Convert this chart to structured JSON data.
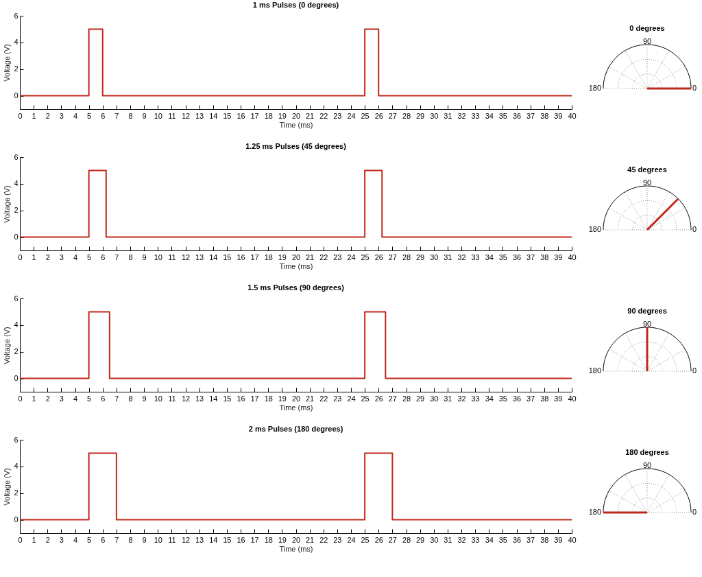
{
  "chart_data": [
    {
      "type": "line",
      "title": "1 ms Pulses (0 degrees)",
      "xlabel": "Time (ms)",
      "ylabel": "Voltage (V)",
      "x": [
        0,
        5,
        5,
        6,
        6,
        25,
        25,
        26,
        26,
        40
      ],
      "values": [
        0,
        0,
        5,
        5,
        0,
        0,
        5,
        5,
        0,
        0
      ],
      "color": "#c0281c",
      "xlim": [
        0,
        40
      ],
      "xticks": [
        0,
        1,
        2,
        3,
        4,
        5,
        6,
        7,
        8,
        9,
        10,
        11,
        12,
        13,
        14,
        15,
        16,
        17,
        18,
        19,
        20,
        21,
        22,
        23,
        24,
        25,
        26,
        27,
        28,
        29,
        30,
        31,
        32,
        33,
        34,
        35,
        36,
        37,
        38,
        39,
        40
      ],
      "ylim": [
        -1,
        6
      ],
      "yticks": [
        0,
        2,
        4,
        6
      ]
    },
    {
      "type": "other",
      "values": [
        0
      ],
      "value_labels": [
        "0 degrees"
      ],
      "color": "#c0281c",
      "annotations": [
        "90",
        "180",
        "0"
      ]
    },
    {
      "type": "line",
      "title": "1.25 ms Pulses (45 degrees)",
      "xlabel": "Time (ms)",
      "ylabel": "Voltage (V)",
      "x": [
        0,
        5,
        5,
        6.25,
        6.25,
        25,
        25,
        26.25,
        26.25,
        40
      ],
      "values": [
        0,
        0,
        5,
        5,
        0,
        0,
        5,
        5,
        0,
        0
      ],
      "color": "#c0281c",
      "xlim": [
        0,
        40
      ],
      "xticks": [
        0,
        1,
        2,
        3,
        4,
        5,
        6,
        7,
        8,
        9,
        10,
        11,
        12,
        13,
        14,
        15,
        16,
        17,
        18,
        19,
        20,
        21,
        22,
        23,
        24,
        25,
        26,
        27,
        28,
        29,
        30,
        31,
        32,
        33,
        34,
        35,
        36,
        37,
        38,
        39,
        40
      ],
      "ylim": [
        -1,
        6
      ],
      "yticks": [
        0,
        2,
        4,
        6
      ]
    },
    {
      "type": "other",
      "values": [
        45
      ],
      "value_labels": [
        "45 degrees"
      ],
      "color": "#c0281c",
      "annotations": [
        "90",
        "180",
        "0"
      ]
    },
    {
      "type": "line",
      "title": "1.5 ms Pulses (90 degrees)",
      "xlabel": "Time (ms)",
      "ylabel": "Voltage (V)",
      "x": [
        0,
        5,
        5,
        6.5,
        6.5,
        25,
        25,
        26.5,
        26.5,
        40
      ],
      "values": [
        0,
        0,
        5,
        5,
        0,
        0,
        5,
        5,
        0,
        0
      ],
      "color": "#c0281c",
      "xlim": [
        0,
        40
      ],
      "xticks": [
        0,
        1,
        2,
        3,
        4,
        5,
        6,
        7,
        8,
        9,
        10,
        11,
        12,
        13,
        14,
        15,
        16,
        17,
        18,
        19,
        20,
        21,
        22,
        23,
        24,
        25,
        26,
        27,
        28,
        29,
        30,
        31,
        32,
        33,
        34,
        35,
        36,
        37,
        38,
        39,
        40
      ],
      "ylim": [
        -1,
        6
      ],
      "yticks": [
        0,
        2,
        4,
        6
      ]
    },
    {
      "type": "other",
      "values": [
        90
      ],
      "value_labels": [
        "90 degrees"
      ],
      "color": "#c0281c",
      "annotations": [
        "90",
        "180",
        "0"
      ]
    },
    {
      "type": "line",
      "title": "2 ms Pulses (180 degrees)",
      "xlabel": "Time (ms)",
      "ylabel": "Voltage (V)",
      "x": [
        0,
        5,
        5,
        7,
        7,
        25,
        25,
        27,
        27,
        40
      ],
      "values": [
        0,
        0,
        5,
        5,
        0,
        0,
        5,
        5,
        0,
        0
      ],
      "color": "#c0281c",
      "xlim": [
        0,
        40
      ],
      "xticks": [
        0,
        1,
        2,
        3,
        4,
        5,
        6,
        7,
        8,
        9,
        10,
        11,
        12,
        13,
        14,
        15,
        16,
        17,
        18,
        19,
        20,
        21,
        22,
        23,
        24,
        25,
        26,
        27,
        28,
        29,
        30,
        31,
        32,
        33,
        34,
        35,
        36,
        37,
        38,
        39,
        40
      ],
      "ylim": [
        -1,
        6
      ],
      "yticks": [
        0,
        2,
        4,
        6
      ]
    },
    {
      "type": "other",
      "values": [
        180
      ],
      "value_labels": [
        "180 degrees"
      ],
      "color": "#c0281c",
      "annotations": [
        "90",
        "180",
        "0"
      ]
    }
  ]
}
